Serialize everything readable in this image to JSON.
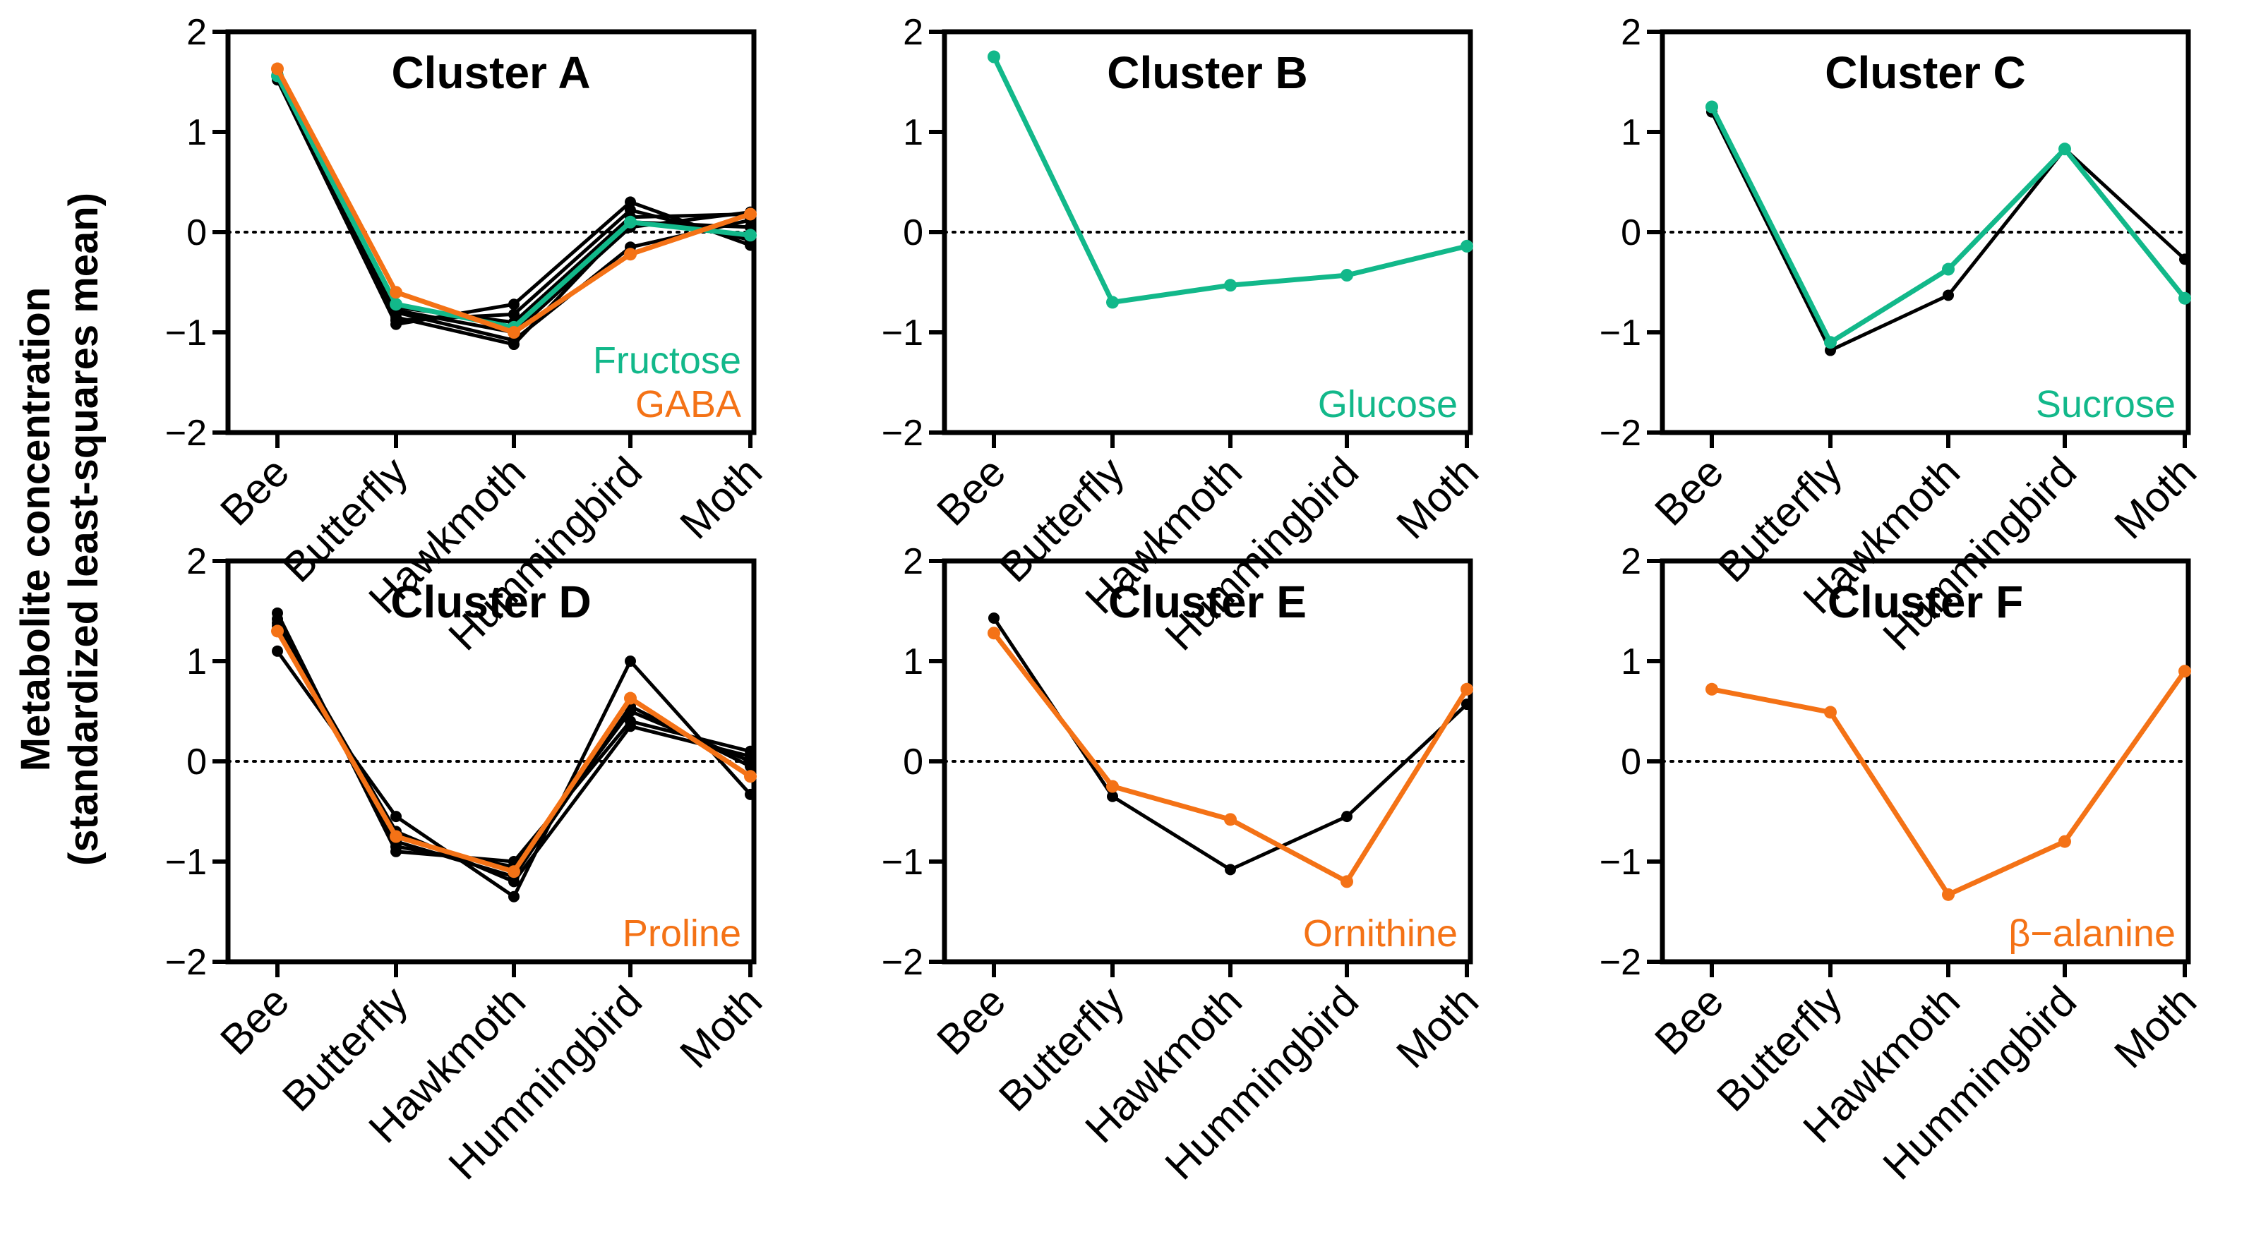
{
  "figure": {
    "ylabel_line1": "Metabolite concentration",
    "ylabel_line2": "(standardized least-squares mean)"
  },
  "colors": {
    "green": "#12b88a",
    "orange": "#f47216",
    "black": "#000000"
  },
  "chart_data": [
    {
      "type": "line",
      "title": "Cluster A",
      "categories": [
        "Bee",
        "Butterfly",
        "Hawkmoth",
        "Hummingbird",
        "Moth"
      ],
      "ylim": [
        -2,
        2
      ],
      "yticks": [
        "2",
        "1",
        "0",
        "−1",
        "−2"
      ],
      "ytick_values": [
        2,
        1,
        0,
        -1,
        -2
      ],
      "legend": [
        {
          "label": "Fructose",
          "color": "green"
        },
        {
          "label": "GABA",
          "color": "orange"
        }
      ],
      "series": [
        {
          "name": "",
          "color": "black",
          "values": [
            1.52,
            -0.92,
            -0.72,
            0.3,
            -0.13
          ]
        },
        {
          "name": "",
          "color": "black",
          "values": [
            1.55,
            -0.88,
            -0.82,
            0.22,
            -0.08
          ]
        },
        {
          "name": "",
          "color": "black",
          "values": [
            1.58,
            -0.85,
            -1.12,
            0.1,
            0.05
          ]
        },
        {
          "name": "",
          "color": "black",
          "values": [
            1.56,
            -0.8,
            -1.08,
            -0.15,
            0.12
          ]
        },
        {
          "name": "",
          "color": "black",
          "values": [
            1.6,
            -0.75,
            -0.9,
            0.15,
            0.18
          ]
        },
        {
          "name": "",
          "color": "black",
          "values": [
            1.57,
            -0.78,
            -1.0,
            0.05,
            0.2
          ]
        },
        {
          "name": "Fructose",
          "color": "green",
          "values": [
            1.56,
            -0.72,
            -0.95,
            0.1,
            -0.03
          ]
        },
        {
          "name": "GABA",
          "color": "orange",
          "values": [
            1.63,
            -0.6,
            -1.0,
            -0.22,
            0.18
          ]
        }
      ]
    },
    {
      "type": "line",
      "title": "Cluster B",
      "categories": [
        "Bee",
        "Butterfly",
        "Hawkmoth",
        "Hummingbird",
        "Moth"
      ],
      "ylim": [
        -2,
        2
      ],
      "yticks": [
        "2",
        "1",
        "0",
        "−1",
        "−2"
      ],
      "ytick_values": [
        2,
        1,
        0,
        -1,
        -2
      ],
      "legend": [
        {
          "label": "Glucose",
          "color": "green"
        }
      ],
      "series": [
        {
          "name": "Glucose",
          "color": "green",
          "values": [
            1.75,
            -0.7,
            -0.53,
            -0.43,
            -0.14
          ]
        }
      ]
    },
    {
      "type": "line",
      "title": "Cluster C",
      "categories": [
        "Bee",
        "Butterfly",
        "Hawkmoth",
        "Hummingbird",
        "Moth"
      ],
      "ylim": [
        -2,
        2
      ],
      "yticks": [
        "2",
        "1",
        "0",
        "−1",
        "−2"
      ],
      "ytick_values": [
        2,
        1,
        0,
        -1,
        -2
      ],
      "legend": [
        {
          "label": "Sucrose",
          "color": "green"
        }
      ],
      "series": [
        {
          "name": "",
          "color": "black",
          "values": [
            1.2,
            -1.18,
            -0.63,
            0.83,
            -0.27
          ]
        },
        {
          "name": "Sucrose",
          "color": "green",
          "values": [
            1.25,
            -1.1,
            -0.37,
            0.83,
            -0.66
          ]
        }
      ]
    },
    {
      "type": "line",
      "title": "Cluster D",
      "categories": [
        "Bee",
        "Butterfly",
        "Hawkmoth",
        "Hummingbird",
        "Moth"
      ],
      "ylim": [
        -2,
        2
      ],
      "yticks": [
        "2",
        "1",
        "0",
        "−1",
        "−2"
      ],
      "ytick_values": [
        2,
        1,
        0,
        -1,
        -2
      ],
      "legend": [
        {
          "label": "Proline",
          "color": "orange"
        }
      ],
      "series": [
        {
          "name": "",
          "color": "black",
          "values": [
            1.1,
            -0.55,
            -1.35,
            1.0,
            -0.33
          ]
        },
        {
          "name": "",
          "color": "black",
          "values": [
            1.48,
            -0.9,
            -1.0,
            0.4,
            0.1
          ]
        },
        {
          "name": "",
          "color": "black",
          "values": [
            1.42,
            -0.85,
            -1.05,
            0.5,
            0.0
          ]
        },
        {
          "name": "",
          "color": "black",
          "values": [
            1.38,
            -0.8,
            -1.15,
            0.55,
            -0.05
          ]
        },
        {
          "name": "",
          "color": "black",
          "values": [
            1.35,
            -0.7,
            -1.2,
            0.35,
            0.05
          ]
        },
        {
          "name": "Proline",
          "color": "orange",
          "values": [
            1.3,
            -0.75,
            -1.1,
            0.63,
            -0.15
          ]
        }
      ]
    },
    {
      "type": "line",
      "title": "Cluster E",
      "categories": [
        "Bee",
        "Butterfly",
        "Hawkmoth",
        "Hummingbird",
        "Moth"
      ],
      "ylim": [
        -2,
        2
      ],
      "yticks": [
        "2",
        "1",
        "0",
        "−1",
        "−2"
      ],
      "ytick_values": [
        2,
        1,
        0,
        -1,
        -2
      ],
      "legend": [
        {
          "label": "Ornithine",
          "color": "orange"
        }
      ],
      "series": [
        {
          "name": "",
          "color": "black",
          "values": [
            1.43,
            -0.35,
            -1.08,
            -0.55,
            0.57
          ]
        },
        {
          "name": "Ornithine",
          "color": "orange",
          "values": [
            1.28,
            -0.25,
            -0.58,
            -1.2,
            0.72
          ]
        }
      ]
    },
    {
      "type": "line",
      "title": "Cluster F",
      "categories": [
        "Bee",
        "Butterfly",
        "Hawkmoth",
        "Hummingbird",
        "Moth"
      ],
      "ylim": [
        -2,
        2
      ],
      "yticks": [
        "2",
        "1",
        "0",
        "−1",
        "−2"
      ],
      "ytick_values": [
        2,
        1,
        0,
        -1,
        -2
      ],
      "legend": [
        {
          "label": "β−alanine",
          "color": "orange"
        }
      ],
      "series": [
        {
          "name": "β−alanine",
          "color": "orange",
          "values": [
            0.72,
            0.49,
            -1.33,
            -0.8,
            0.9
          ]
        }
      ]
    }
  ]
}
